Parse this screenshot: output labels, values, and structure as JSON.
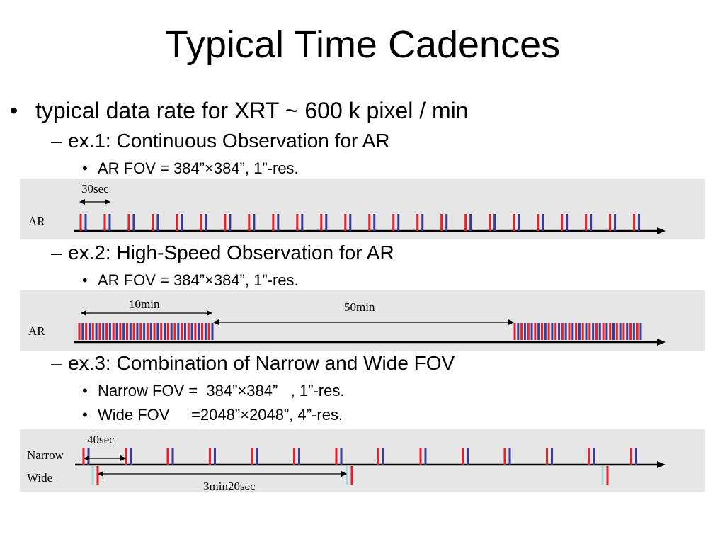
{
  "title": "Typical Time Cadences",
  "bullet_main": "typical data rate for XRT ~ 600 k pixel / min",
  "ex1": {
    "heading": "ex.1: Continuous Observation for AR",
    "sub": [
      "AR FOV = 384”×384”, 1”-res."
    ],
    "row_label": "AR",
    "interval_label": "30sec"
  },
  "ex2": {
    "heading": "ex.2: High-Speed Observation for AR",
    "sub": [
      "AR FOV = 384”×384”, 1”-res."
    ],
    "row_label": "AR",
    "burst_label": "10min",
    "gap_label": "50min"
  },
  "ex3": {
    "heading": "ex.3: Combination of Narrow and Wide FOV",
    "sub": [
      "Narrow FOV =  384”×384”   , 1”-res.",
      "Wide FOV     =2048”×2048”, 4”-res."
    ],
    "row_labels": [
      "Narrow",
      "Wide"
    ],
    "narrow_interval_label": "40sec",
    "wide_interval_label": "3min20sec"
  },
  "colors": {
    "panel_bg": "#e6e6e6",
    "red_tick": "#e8202a",
    "blue_tick": "#3a3a9a",
    "cyan_tick": "#a8d8d8",
    "axis": "#000000"
  }
}
